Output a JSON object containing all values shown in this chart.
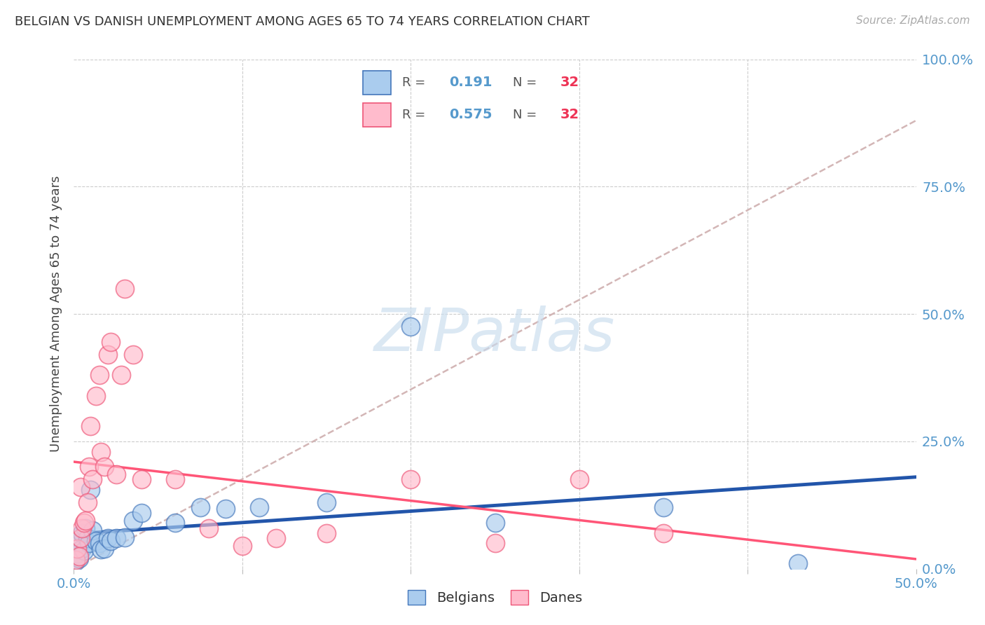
{
  "title": "BELGIAN VS DANISH UNEMPLOYMENT AMONG AGES 65 TO 74 YEARS CORRELATION CHART",
  "source": "Source: ZipAtlas.com",
  "ylabel": "Unemployment Among Ages 65 to 74 years",
  "xlim": [
    0.0,
    0.5
  ],
  "ylim": [
    0.0,
    1.0
  ],
  "R_belgian": 0.191,
  "R_dane": 0.575,
  "N": 32,
  "belgian_fill": "#AACCEE",
  "dane_fill": "#FFBBCC",
  "belgian_edge": "#4477BB",
  "dane_edge": "#EE5577",
  "belgian_line_color": "#2255AA",
  "dane_line_color": "#FF5577",
  "dash_line_color": "#CCAAAA",
  "watermark_color": "#C8DCEE",
  "legend_labels": [
    "Belgians",
    "Danes"
  ],
  "belgian_x": [
    0.001,
    0.002,
    0.003,
    0.003,
    0.004,
    0.005,
    0.005,
    0.006,
    0.007,
    0.008,
    0.009,
    0.01,
    0.011,
    0.013,
    0.015,
    0.016,
    0.018,
    0.02,
    0.022,
    0.025,
    0.03,
    0.035,
    0.04,
    0.06,
    0.075,
    0.09,
    0.11,
    0.15,
    0.2,
    0.25,
    0.35,
    0.43
  ],
  "belgian_y": [
    0.015,
    0.03,
    0.02,
    0.05,
    0.06,
    0.04,
    0.07,
    0.035,
    0.08,
    0.06,
    0.05,
    0.155,
    0.075,
    0.055,
    0.05,
    0.038,
    0.04,
    0.06,
    0.055,
    0.06,
    0.062,
    0.095,
    0.11,
    0.09,
    0.12,
    0.118,
    0.12,
    0.13,
    0.475,
    0.09,
    0.12,
    0.01
  ],
  "dane_x": [
    0.001,
    0.002,
    0.003,
    0.004,
    0.004,
    0.005,
    0.006,
    0.007,
    0.008,
    0.009,
    0.01,
    0.011,
    0.013,
    0.015,
    0.016,
    0.018,
    0.02,
    0.022,
    0.025,
    0.028,
    0.03,
    0.035,
    0.04,
    0.06,
    0.08,
    0.1,
    0.12,
    0.15,
    0.2,
    0.25,
    0.3,
    0.35
  ],
  "dane_y": [
    0.018,
    0.04,
    0.025,
    0.06,
    0.16,
    0.08,
    0.09,
    0.095,
    0.13,
    0.2,
    0.28,
    0.175,
    0.34,
    0.38,
    0.23,
    0.2,
    0.42,
    0.445,
    0.185,
    0.38,
    0.55,
    0.42,
    0.175,
    0.175,
    0.08,
    0.045,
    0.06,
    0.07,
    0.175,
    0.05,
    0.175,
    0.07
  ],
  "ref_line_x": [
    0.0,
    0.5
  ],
  "ref_line_y": [
    0.0,
    0.88
  ]
}
